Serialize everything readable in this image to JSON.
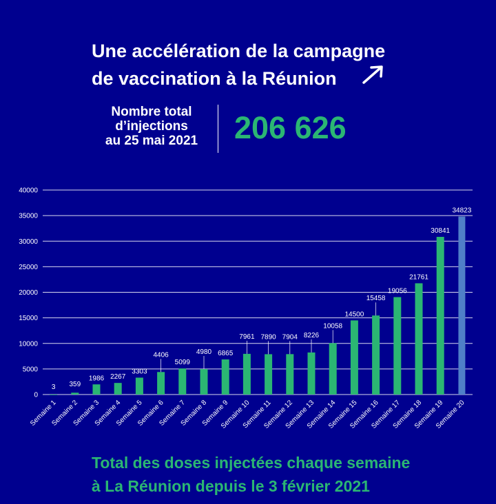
{
  "header": {
    "title_line1": "Une accélération de la campagne",
    "title_line2": "de vaccination à la Réunion",
    "total_label_line1": "Nombre total",
    "total_label_line2": "d’injections",
    "total_label_line3": "au 25 mai 2021",
    "total_value": "206 626",
    "arrow_icon": "arrow-up-right-icon"
  },
  "footer": {
    "line1": "Total des doses injectées chaque semaine",
    "line2": "à La Réunion depuis le 3 février 2021"
  },
  "colors": {
    "background": "#00008f",
    "bar": "#2bb673",
    "bar_highlight": "#4f7fc8",
    "accent_text": "#2bb673",
    "gridline": "#ffffff"
  },
  "chart_data": {
    "type": "bar",
    "categories": [
      "Semaine 1",
      "Semaine 2",
      "Semaine 3",
      "Semaine 4",
      "Semaine 5",
      "Semaine 6",
      "Semaine 7",
      "Semaine 8",
      "Semaine 9",
      "Semaine 10",
      "Semaine 11",
      "Semaine 12",
      "Semaine 13",
      "Semaine 14",
      "Semaine 15",
      "Semaine 16",
      "Semaine 17",
      "Semaine 18",
      "Semaine 19",
      "Semaine 20"
    ],
    "values": [
      3,
      359,
      1986,
      2267,
      3303,
      4406,
      5099,
      4980,
      6865,
      7961,
      7890,
      7904,
      8226,
      10058,
      14500,
      15458,
      19056,
      21761,
      30841,
      34823
    ],
    "data_labels": [
      "3",
      "359",
      "1986",
      "2267",
      "3303",
      "4406",
      "5099",
      "4980",
      "6865",
      "7961",
      "7890",
      "7904",
      "8226",
      "10058",
      "14500",
      "15458",
      "19056",
      "21761",
      "30841",
      "34823"
    ],
    "yticks": [
      0,
      5000,
      10000,
      15000,
      20000,
      25000,
      30000,
      35000,
      40000
    ],
    "ylim": [
      0,
      40000
    ],
    "grid": true,
    "highlight_index": 19
  }
}
